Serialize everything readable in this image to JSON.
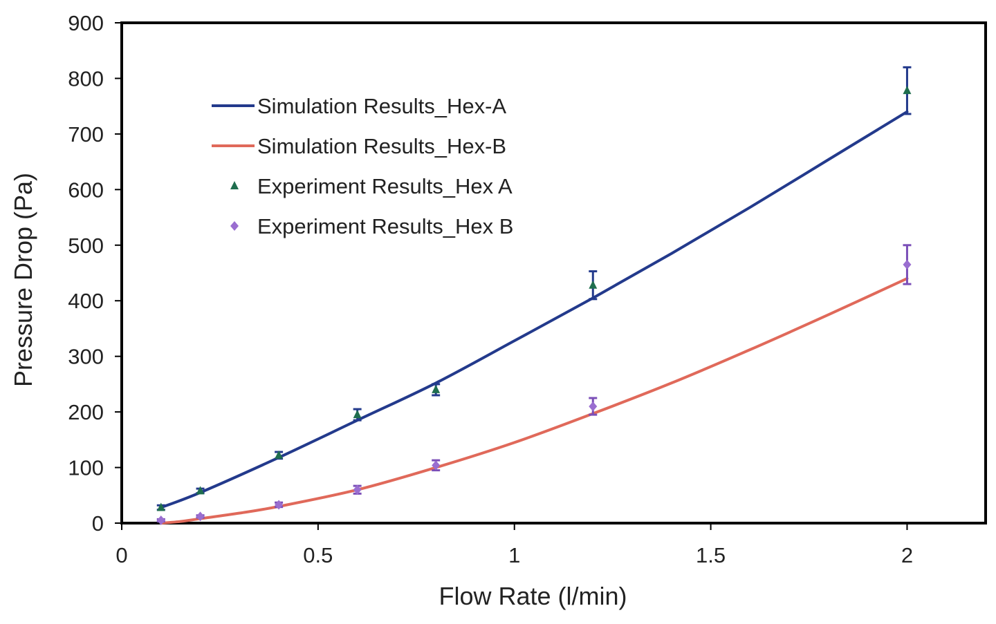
{
  "chart_data": {
    "type": "line",
    "title": "",
    "xlabel": "Flow Rate (l/min)",
    "ylabel": "Pressure Drop (Pa)",
    "xlim": [
      0,
      2.2
    ],
    "ylim": [
      0,
      900
    ],
    "x_ticks": [
      {
        "value": 0,
        "label": "0"
      },
      {
        "value": 0.5,
        "label": "0.5"
      },
      {
        "value": 1,
        "label": "1"
      },
      {
        "value": 1.5,
        "label": "1.5"
      },
      {
        "value": 2,
        "label": "2"
      }
    ],
    "y_ticks": [
      {
        "value": 0,
        "label": "0"
      },
      {
        "value": 100,
        "label": "100"
      },
      {
        "value": 200,
        "label": "200"
      },
      {
        "value": 300,
        "label": "300"
      },
      {
        "value": 400,
        "label": "400"
      },
      {
        "value": 500,
        "label": "500"
      },
      {
        "value": 600,
        "label": "600"
      },
      {
        "value": 700,
        "label": "700"
      },
      {
        "value": 800,
        "label": "800"
      },
      {
        "value": 900,
        "label": "900"
      }
    ],
    "grid": false,
    "legend_position": "top-left",
    "series": [
      {
        "name": "Simulation Results_Hex-A",
        "kind": "line",
        "color": "#233a8c",
        "x": [
          0.1,
          0.2,
          0.4,
          0.6,
          0.8,
          1.0,
          1.2,
          1.4,
          1.6,
          1.8,
          2.0
        ],
        "y": [
          28,
          55,
          118,
          185,
          252,
          328,
          405,
          485,
          568,
          654,
          740
        ]
      },
      {
        "name": "Simulation Results_Hex-B",
        "kind": "line",
        "color": "#e0695a",
        "x": [
          0.1,
          0.15,
          0.2,
          0.3,
          0.4,
          0.6,
          0.8,
          1.0,
          1.2,
          1.4,
          1.6,
          1.8,
          2.0
        ],
        "y": [
          0,
          3,
          8,
          18,
          30,
          60,
          100,
          145,
          197,
          252,
          312,
          375,
          440
        ]
      },
      {
        "name": "Experiment Results_Hex A",
        "kind": "scatter",
        "marker": "triangle",
        "color": "#1f6e4e",
        "error_color": "#233a8c",
        "x": [
          0.1,
          0.2,
          0.4,
          0.6,
          0.8,
          1.2,
          2.0
        ],
        "y": [
          28,
          58,
          122,
          195,
          240,
          428,
          778
        ],
        "err": [
          4,
          4,
          6,
          10,
          10,
          25,
          42
        ]
      },
      {
        "name": "Experiment Results_Hex B",
        "kind": "scatter",
        "marker": "diamond",
        "color": "#9a6ed0",
        "error_color": "#7b4fb8",
        "x": [
          0.1,
          0.2,
          0.4,
          0.6,
          0.8,
          1.2,
          2.0
        ],
        "y": [
          5,
          12,
          33,
          60,
          104,
          210,
          465
        ],
        "err": [
          2,
          2,
          4,
          7,
          9,
          15,
          35
        ]
      }
    ]
  }
}
